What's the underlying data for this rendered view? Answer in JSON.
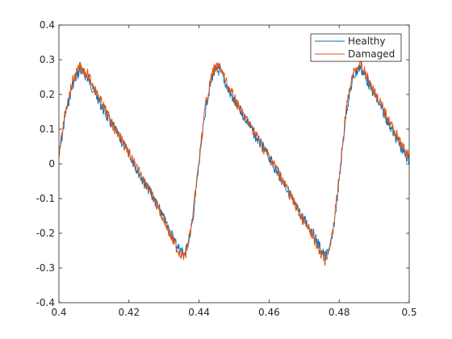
{
  "chart_data": {
    "type": "line",
    "title": "",
    "xlabel": "",
    "ylabel": "",
    "xlim": [
      0.4,
      0.5
    ],
    "ylim": [
      -0.4,
      0.4
    ],
    "x_ticks": [
      0.4,
      0.42,
      0.44,
      0.46,
      0.48,
      0.5
    ],
    "x_tick_labels": [
      "0.4",
      "0.42",
      "0.44",
      "0.46",
      "0.48",
      "0.5"
    ],
    "y_ticks": [
      -0.4,
      -0.3,
      -0.2,
      -0.1,
      0,
      0.1,
      0.2,
      0.3,
      0.4
    ],
    "y_tick_labels": [
      "-0.4",
      "-0.3",
      "-0.2",
      "-0.1",
      "0",
      "0.1",
      "0.2",
      "0.3",
      "0.4"
    ],
    "grid": false,
    "legend_position": "top-right",
    "series": [
      {
        "name": "Healthy",
        "color": "#0072BD",
        "x": [
          0.4,
          0.402,
          0.404,
          0.406,
          0.408,
          0.41,
          0.412,
          0.414,
          0.416,
          0.418,
          0.42,
          0.422,
          0.424,
          0.426,
          0.428,
          0.43,
          0.432,
          0.434,
          0.436,
          0.438,
          0.44,
          0.442,
          0.444,
          0.446,
          0.448,
          0.45,
          0.452,
          0.454,
          0.456,
          0.458,
          0.46,
          0.462,
          0.464,
          0.466,
          0.468,
          0.47,
          0.472,
          0.474,
          0.476,
          0.478,
          0.48,
          0.482,
          0.484,
          0.486,
          0.488,
          0.49,
          0.492,
          0.494,
          0.496,
          0.498,
          0.5
        ],
        "y": [
          0.02,
          0.15,
          0.23,
          0.27,
          0.25,
          0.21,
          0.17,
          0.13,
          0.1,
          0.06,
          0.03,
          -0.01,
          -0.05,
          -0.08,
          -0.12,
          -0.16,
          -0.2,
          -0.24,
          -0.26,
          -0.18,
          0.0,
          0.17,
          0.26,
          0.27,
          0.22,
          0.18,
          0.15,
          0.12,
          0.08,
          0.05,
          0.02,
          -0.02,
          -0.05,
          -0.09,
          -0.13,
          -0.16,
          -0.19,
          -0.23,
          -0.27,
          -0.22,
          -0.05,
          0.15,
          0.25,
          0.28,
          0.24,
          0.2,
          0.16,
          0.12,
          0.08,
          0.04,
          0.01
        ]
      },
      {
        "name": "Damaged",
        "color": "#D95319",
        "x": [
          0.4,
          0.402,
          0.404,
          0.406,
          0.408,
          0.41,
          0.412,
          0.414,
          0.416,
          0.418,
          0.42,
          0.422,
          0.424,
          0.426,
          0.428,
          0.43,
          0.432,
          0.434,
          0.436,
          0.438,
          0.44,
          0.442,
          0.444,
          0.446,
          0.448,
          0.45,
          0.452,
          0.454,
          0.456,
          0.458,
          0.46,
          0.462,
          0.464,
          0.466,
          0.468,
          0.47,
          0.472,
          0.474,
          0.476,
          0.478,
          0.48,
          0.482,
          0.484,
          0.486,
          0.488,
          0.49,
          0.492,
          0.494,
          0.496,
          0.498,
          0.5
        ],
        "y": [
          0.03,
          0.16,
          0.24,
          0.28,
          0.26,
          0.22,
          0.18,
          0.14,
          0.1,
          0.07,
          0.03,
          -0.01,
          -0.04,
          -0.08,
          -0.12,
          -0.16,
          -0.21,
          -0.25,
          -0.27,
          -0.17,
          0.01,
          0.18,
          0.27,
          0.28,
          0.23,
          0.19,
          0.15,
          0.12,
          0.09,
          0.05,
          0.02,
          -0.01,
          -0.05,
          -0.09,
          -0.13,
          -0.17,
          -0.2,
          -0.24,
          -0.28,
          -0.21,
          -0.04,
          0.16,
          0.26,
          0.29,
          0.25,
          0.21,
          0.17,
          0.13,
          0.09,
          0.05,
          0.02
        ]
      }
    ]
  }
}
